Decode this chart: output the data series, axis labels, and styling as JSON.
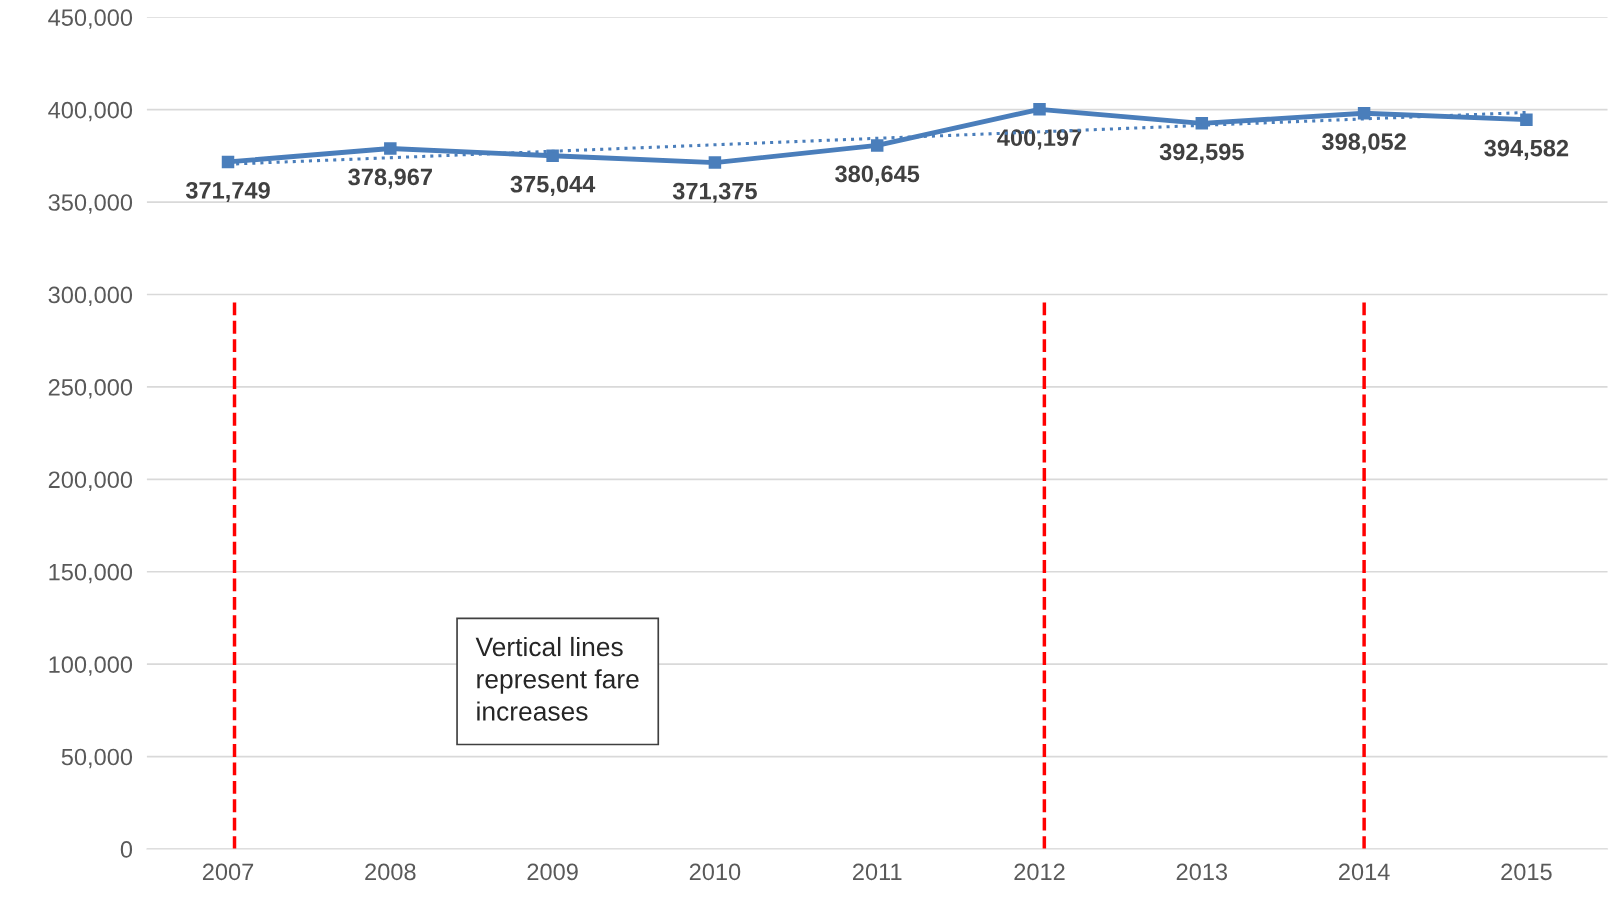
{
  "chart_data": {
    "type": "line",
    "x": [
      2007,
      2008,
      2009,
      2010,
      2011,
      2012,
      2013,
      2014,
      2015
    ],
    "series": [
      {
        "color": "#4a7ebb",
        "values": [
          371749,
          378967,
          375044,
          371375,
          380645,
          400197,
          392595,
          398052,
          394582
        ],
        "marker": "square",
        "line_style": "solid",
        "value_labels": [
          "371,749",
          "378,967",
          "375,044",
          "371,375",
          "380,645",
          "400,197",
          "392,595",
          "398,052",
          "394,582"
        ]
      },
      {
        "type": "line",
        "color": "#4a7ebb",
        "x": [
          2007,
          2015
        ],
        "values": [
          370500,
          398500
        ],
        "marker": "none",
        "line_style": "dotted"
      }
    ],
    "xlim": [
      2006.5,
      2015.5
    ],
    "xticks": [
      2007,
      2008,
      2009,
      2010,
      2011,
      2012,
      2013,
      2014,
      2015
    ],
    "ylim": [
      0,
      450000
    ],
    "yticks": [
      {
        "value": 0,
        "label": "0"
      },
      {
        "value": 50000,
        "label": "50,000"
      },
      {
        "value": 100000,
        "label": "100,000"
      },
      {
        "value": 150000,
        "label": "150,000"
      },
      {
        "value": 200000,
        "label": "200,000"
      },
      {
        "value": 250000,
        "label": "250,000"
      },
      {
        "value": 300000,
        "label": "300,000"
      },
      {
        "value": 350000,
        "label": "350,000"
      },
      {
        "value": 400000,
        "label": "400,000"
      },
      {
        "value": 450000,
        "label": "450,000"
      }
    ],
    "grid": "y",
    "legend": false,
    "ref_lines": [
      {
        "axis": "x",
        "value": 2007.04,
        "color": "#ff0000",
        "line_style": "dashed"
      },
      {
        "axis": "x",
        "value": 2012.03,
        "color": "#ff0000",
        "line_style": "dashed"
      },
      {
        "axis": "x",
        "value": 2014.0,
        "color": "#ff0000",
        "line_style": "dashed"
      }
    ],
    "annotations": [
      "Vertical lines\nrepresent fare\nincreases"
    ]
  }
}
